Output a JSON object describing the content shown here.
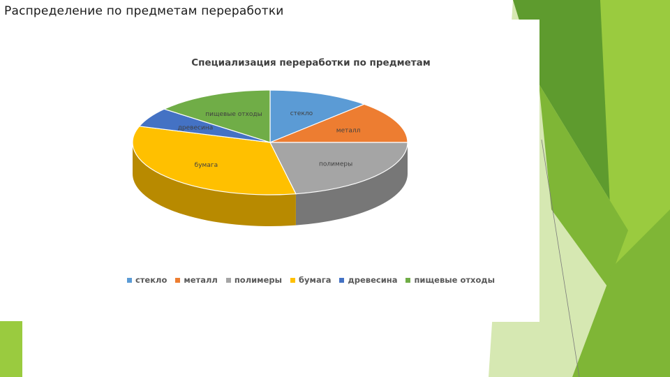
{
  "slide": {
    "title": "Распределение по предметам переработки"
  },
  "colors": {
    "green_dark": "#5e9b2e",
    "green_mid": "#7fb636",
    "green_light": "#9acb3f",
    "green_pale": "#d6e8b2"
  },
  "chart_data": {
    "type": "pie",
    "title": "Специализация переработки по предметам",
    "categories": [
      "стекло",
      "металл",
      "полимеры",
      "бумага",
      "древесина",
      "пищевые отходы"
    ],
    "values": [
      12,
      13,
      22,
      33,
      6,
      14
    ],
    "colors": [
      "#5b9bd5",
      "#ed7d31",
      "#a5a5a5",
      "#ffc000",
      "#4472c4",
      "#70ad47"
    ],
    "style": "3d",
    "legend": "bottom"
  }
}
